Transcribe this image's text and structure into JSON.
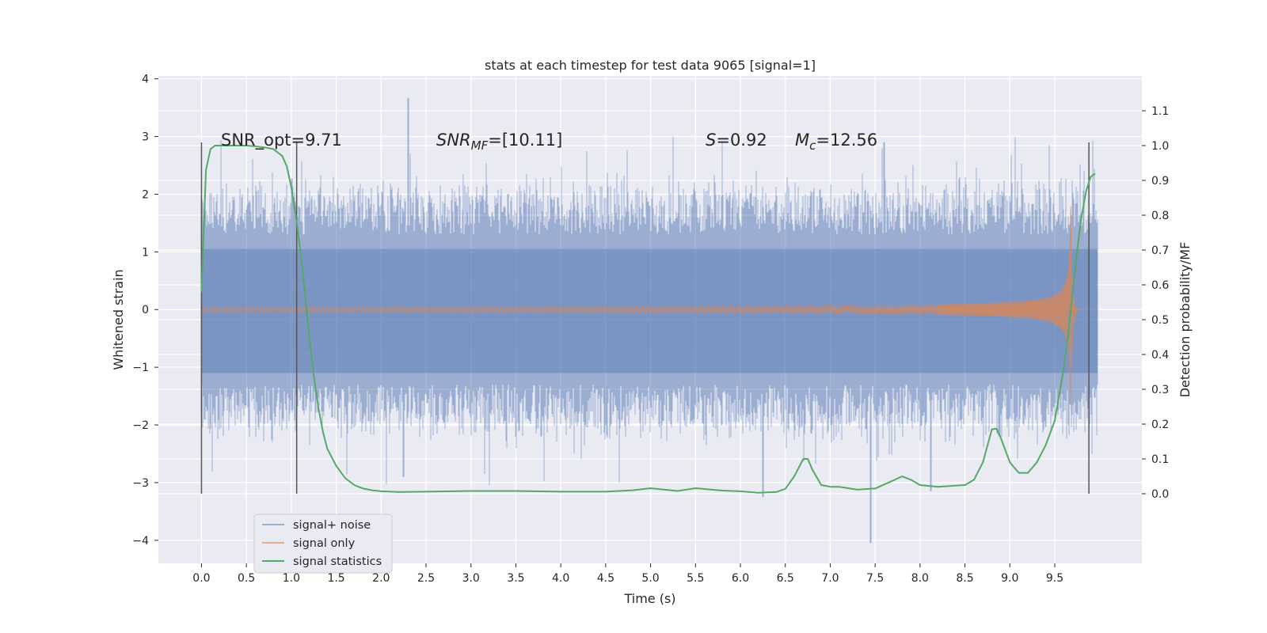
{
  "chart_data": {
    "type": "line",
    "title": "stats at each timestep for test data 9065 [signal=1]",
    "xlabel": "Time (s)",
    "ylabel": "Whitened strain",
    "y2label": "Detection probability/MF",
    "xlim": [
      -0.48,
      10.47
    ],
    "ylim": [
      -4.4,
      4.05
    ],
    "y2lim": [
      -0.2,
      1.2
    ],
    "xticks": [
      "0.0",
      "0.5",
      "1.0",
      "1.5",
      "2.0",
      "2.5",
      "3.0",
      "3.5",
      "4.0",
      "4.5",
      "5.0",
      "5.5",
      "6.0",
      "6.5",
      "7.0",
      "7.5",
      "8.0",
      "8.5",
      "9.0",
      "9.5"
    ],
    "yticks": [
      "4",
      "3",
      "2",
      "1",
      "0",
      "−1",
      "−2",
      "−3",
      "−4"
    ],
    "y2ticks": [
      "1.1",
      "1.0",
      "0.9",
      "0.8",
      "0.7",
      "0.6",
      "0.5",
      "0.4",
      "0.3",
      "0.2",
      "0.1",
      "0.0"
    ],
    "grid": true,
    "legend_position": "lower-left",
    "colors": {
      "signal_noise": "#4c72b0",
      "signal_only": "#dd8452",
      "statistics": "#55a868",
      "vline": "#555555",
      "background": "#eaeaf2"
    },
    "noise": {
      "t_start": 0.0,
      "t_end": 9.98,
      "typical_peak_range": [
        1.3,
        2.4
      ],
      "max": 3.67,
      "min": -4.05
    },
    "signal_chirp": {
      "t_start": 0.0,
      "t_end": 9.98,
      "merger_time": 9.68,
      "merger_amplitude": 1.8
    },
    "series": [
      {
        "name": "signal+ noise",
        "style": "noise"
      },
      {
        "name": "signal only",
        "style": "chirp"
      },
      {
        "name": "signal statistics",
        "axis": "right",
        "x": [
          0.0,
          0.05,
          0.1,
          0.15,
          0.2,
          0.3,
          0.4,
          0.5,
          0.6,
          0.7,
          0.8,
          0.9,
          0.95,
          1.0,
          1.05,
          1.1,
          1.15,
          1.2,
          1.25,
          1.3,
          1.35,
          1.4,
          1.5,
          1.6,
          1.7,
          1.8,
          1.9,
          2.0,
          2.2,
          2.5,
          3.0,
          3.5,
          4.0,
          4.5,
          4.8,
          5.0,
          5.3,
          5.5,
          5.8,
          6.0,
          6.2,
          6.4,
          6.5,
          6.6,
          6.7,
          6.75,
          6.8,
          6.9,
          7.0,
          7.1,
          7.3,
          7.5,
          7.7,
          7.8,
          7.9,
          8.0,
          8.2,
          8.5,
          8.6,
          8.7,
          8.8,
          8.85,
          8.9,
          9.0,
          9.1,
          9.2,
          9.3,
          9.4,
          9.5,
          9.6,
          9.65,
          9.7,
          9.75,
          9.8,
          9.85,
          9.9,
          9.95
        ],
        "y": [
          0.58,
          0.93,
          0.99,
          1.0,
          1.0,
          1.0,
          1.0,
          1.0,
          0.998,
          0.995,
          0.99,
          0.97,
          0.94,
          0.88,
          0.8,
          0.7,
          0.58,
          0.45,
          0.34,
          0.25,
          0.18,
          0.13,
          0.08,
          0.045,
          0.025,
          0.015,
          0.01,
          0.007,
          0.005,
          0.006,
          0.008,
          0.008,
          0.006,
          0.006,
          0.01,
          0.016,
          0.008,
          0.016,
          0.009,
          0.007,
          0.003,
          0.005,
          0.014,
          0.05,
          0.1,
          0.1,
          0.07,
          0.025,
          0.02,
          0.02,
          0.012,
          0.015,
          0.038,
          0.05,
          0.04,
          0.025,
          0.02,
          0.025,
          0.04,
          0.09,
          0.185,
          0.187,
          0.16,
          0.09,
          0.06,
          0.06,
          0.09,
          0.14,
          0.21,
          0.36,
          0.46,
          0.58,
          0.7,
          0.8,
          0.87,
          0.91,
          0.92
        ]
      }
    ],
    "vlines": [
      0.0,
      1.06,
      9.88
    ],
    "annotations": {
      "snr_opt": "SNR_opt=9.71",
      "snr_mf_base": "SNR",
      "snr_mf_sub": "MF",
      "snr_mf_value": "=[10.11]",
      "s_var": "S",
      "s_value": "=0.92",
      "mc_var": "M",
      "mc_sub": "c",
      "mc_value": "=12.56"
    }
  }
}
